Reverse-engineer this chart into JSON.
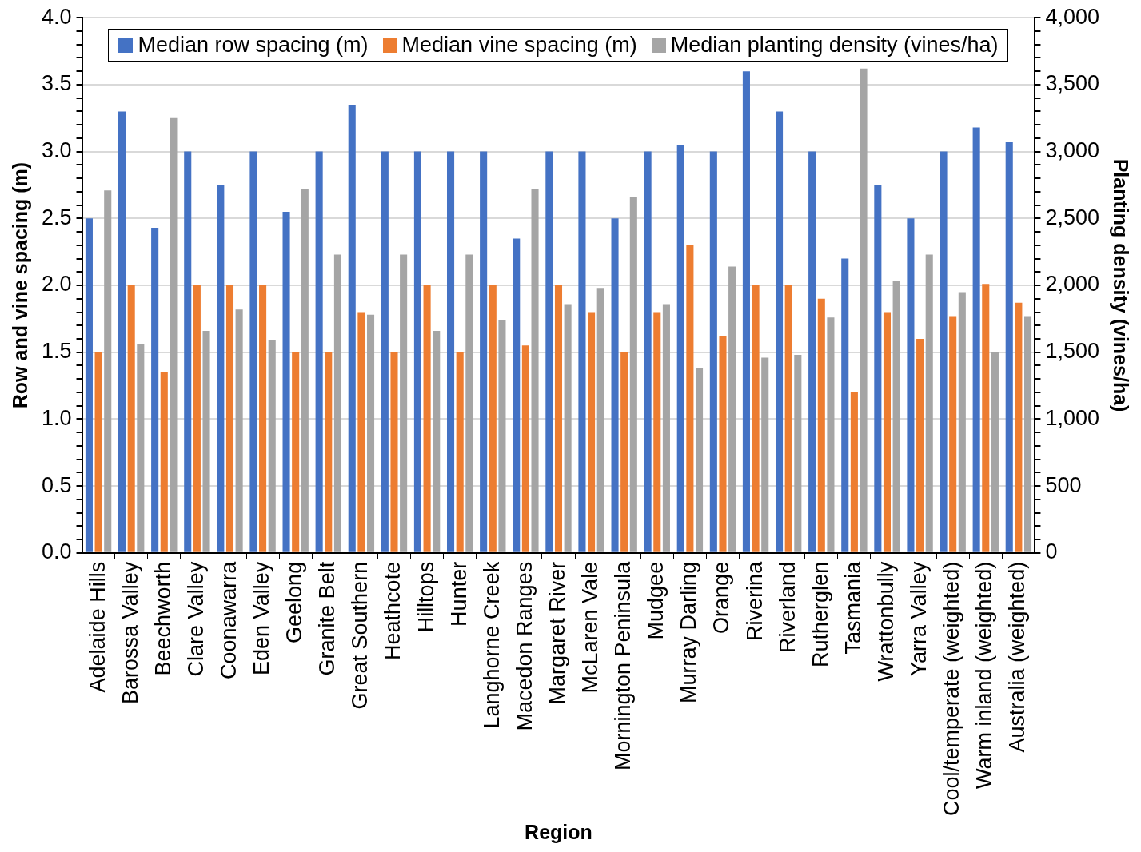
{
  "chart_data": {
    "type": "bar",
    "xlabel": "Region",
    "ylabel": "Row and vine spacing (m)",
    "y2label": "Planting density (vines/ha)",
    "categories": [
      "Adelaide Hills",
      "Barossa Valley",
      "Beechworth",
      "Clare Valley",
      "Coonawarra",
      "Eden Valley",
      "Geelong",
      "Granite Belt",
      "Great Southern",
      "Heathcote",
      "Hilltops",
      "Hunter",
      "Langhorne Creek",
      "Macedon Ranges",
      "Margaret River",
      "McLaren Vale",
      "Mornington Peninsula",
      "Mudgee",
      "Murray Darling",
      "Orange",
      "Riverina",
      "Riverland",
      "Rutherglen",
      "Tasmania",
      "Wrattonbully",
      "Yarra Valley",
      "Cool/temperate (weighted)",
      "Warm inland (weighted)",
      "Australia (weighted)"
    ],
    "series": [
      {
        "name": "Median row spacing (m)",
        "color": "#4472c4",
        "values": [
          2.5,
          3.3,
          2.43,
          3.0,
          2.75,
          3.0,
          2.55,
          3.0,
          3.35,
          3.0,
          3.0,
          3.0,
          3.0,
          2.35,
          3.0,
          3.0,
          2.5,
          3.0,
          3.05,
          3.0,
          3.6,
          3.3,
          3.0,
          2.2,
          2.75,
          2.5,
          3.0,
          3.18,
          3.07
        ]
      },
      {
        "name": "Median vine spacing (m)",
        "color": "#ed7d31",
        "values": [
          1.5,
          2.0,
          1.35,
          2.0,
          2.0,
          2.0,
          1.5,
          1.5,
          1.8,
          1.5,
          2.0,
          1.5,
          2.0,
          1.55,
          2.0,
          1.8,
          1.5,
          1.8,
          2.3,
          1.62,
          2.0,
          2.0,
          1.9,
          1.2,
          1.8,
          1.6,
          1.77,
          2.01,
          1.87
        ]
      },
      {
        "name": "Median planting density (vines/ha)",
        "color": "#a5a5a5",
        "axis": "y2",
        "values": [
          2710,
          1560,
          3250,
          1660,
          1820,
          1590,
          2720,
          2230,
          1780,
          2230,
          1660,
          2230,
          1740,
          2720,
          1860,
          1980,
          2660,
          1860,
          1380,
          2140,
          1460,
          1480,
          1760,
          3620,
          2030,
          2230,
          1950,
          1500,
          1770
        ]
      }
    ],
    "ylim": [
      0,
      4
    ],
    "yticks": [
      "0.0",
      {
        "value": 0.1,
        "label": null
      },
      {
        "value": 0.2,
        "label": null
      },
      {
        "value": 0.3,
        "label": null
      },
      {
        "value": 0.4,
        "label": null
      },
      {
        "value": 0.5,
        "label": "0.5"
      },
      {
        "value": 0.6,
        "label": null
      },
      {
        "value": 0.7,
        "label": null
      },
      {
        "value": 0.8,
        "label": null
      },
      {
        "value": 0.9,
        "label": null
      },
      {
        "value": 1,
        "label": "1.0"
      },
      {
        "value": 1.1,
        "label": null
      },
      {
        "value": 1.2,
        "label": null
      },
      {
        "value": 1.3,
        "label": null
      },
      {
        "value": 1.4,
        "label": null
      },
      {
        "value": 1.5,
        "label": "1.5"
      },
      {
        "value": 1.6,
        "label": null
      },
      {
        "value": 1.7,
        "label": null
      },
      {
        "value": 1.8,
        "label": null
      },
      {
        "value": 1.9,
        "label": null
      },
      {
        "value": 2,
        "label": "2.0"
      },
      {
        "value": 2.1,
        "label": null
      },
      {
        "value": 2.2,
        "label": null
      },
      {
        "value": 2.3,
        "label": null
      },
      {
        "value": 2.4,
        "label": null
      },
      {
        "value": 2.5,
        "label": "2.5"
      },
      {
        "value": 2.6,
        "label": null
      },
      {
        "value": 2.7,
        "label": null
      },
      {
        "value": 2.8,
        "label": null
      },
      {
        "value": 2.9,
        "label": null
      },
      {
        "value": 3,
        "label": "3.0"
      },
      {
        "value": 3.1,
        "label": null
      },
      {
        "value": 3.2,
        "label": null
      },
      {
        "value": 3.3,
        "label": null
      },
      {
        "value": 3.4,
        "label": null
      },
      {
        "value": 3.5,
        "label": "3.5"
      },
      {
        "value": 3.6,
        "label": null
      },
      {
        "value": 3.7,
        "label": null
      },
      {
        "value": 3.8,
        "label": null
      },
      {
        "value": 3.9,
        "label": null
      },
      {
        "value": 4,
        "label": "4.0"
      }
    ],
    "y2lim": [
      0,
      4000
    ],
    "y2ticks": [
      0,
      {
        "value": 100,
        "label": null
      },
      {
        "value": 200,
        "label": null
      },
      {
        "value": 300,
        "label": null
      },
      {
        "value": 400,
        "label": null
      },
      500,
      {
        "value": 600,
        "label": null
      },
      {
        "value": 700,
        "label": null
      },
      {
        "value": 800,
        "label": null
      },
      {
        "value": 900,
        "label": null
      },
      {
        "value": 1000,
        "label": "1,000"
      },
      {
        "value": 1100,
        "label": null
      },
      {
        "value": 1200,
        "label": null
      },
      {
        "value": 1300,
        "label": null
      },
      {
        "value": 1400,
        "label": null
      },
      {
        "value": 1500,
        "label": "1,500"
      },
      {
        "value": 1600,
        "label": null
      },
      {
        "value": 1700,
        "label": null
      },
      {
        "value": 1800,
        "label": null
      },
      {
        "value": 1900,
        "label": null
      },
      {
        "value": 2000,
        "label": "2,000"
      },
      {
        "value": 2100,
        "label": null
      },
      {
        "value": 2200,
        "label": null
      },
      {
        "value": 2300,
        "label": null
      },
      {
        "value": 2400,
        "label": null
      },
      {
        "value": 2500,
        "label": "2,500"
      },
      {
        "value": 2600,
        "label": null
      },
      {
        "value": 2700,
        "label": null
      },
      {
        "value": 2800,
        "label": null
      },
      {
        "value": 2900,
        "label": null
      },
      {
        "value": 3000,
        "label": "3,000"
      },
      {
        "value": 3100,
        "label": null
      },
      {
        "value": 3200,
        "label": null
      },
      {
        "value": 3300,
        "label": null
      },
      {
        "value": 3400,
        "label": null
      },
      {
        "value": 3500,
        "label": "3,500"
      },
      {
        "value": 3600,
        "label": null
      },
      {
        "value": 3700,
        "label": null
      },
      {
        "value": 3800,
        "label": null
      },
      {
        "value": 3900,
        "label": null
      },
      {
        "value": 4000,
        "label": "4,000"
      }
    ],
    "grid": "y",
    "legend": "top"
  }
}
